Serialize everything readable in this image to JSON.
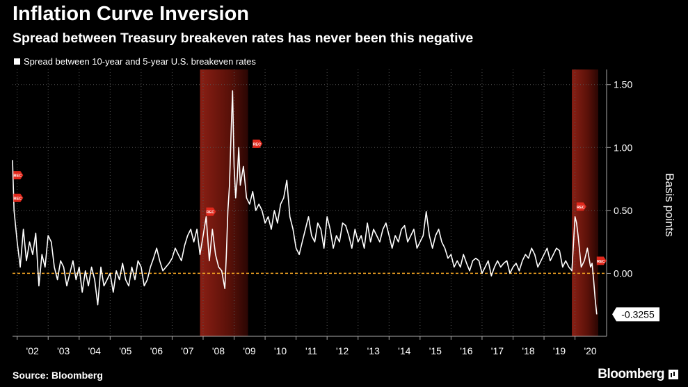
{
  "header": {
    "title": "Inflation Curve Inversion",
    "subtitle": "Spread between Treasury breakeven rates has never been this negative"
  },
  "footer": {
    "source": "Source: Bloomberg",
    "brand": "Bloomberg"
  },
  "chart_data": {
    "type": "line",
    "title": "Inflation Curve Inversion",
    "subtitle": "Spread between Treasury breakeven rates has never been this negative",
    "ylabel": "Basis points",
    "xlabel": "",
    "legend": {
      "entries": [
        "Spread between 10-year and 5-year U.S. breakeven rates"
      ],
      "placement": "top-left"
    },
    "ylim": [
      -0.5,
      1.62
    ],
    "xlim": [
      2001.85,
      2020.75
    ],
    "yticks": [
      1.5,
      1.0,
      0.5,
      0.0
    ],
    "ytick_labels": [
      "1.50",
      "1.00",
      "0.50",
      "0.00"
    ],
    "xticks": [
      2002,
      2003,
      2004,
      2005,
      2006,
      2007,
      2008,
      2009,
      2010,
      2011,
      2012,
      2013,
      2014,
      2015,
      2016,
      2017,
      2018,
      2019,
      2020
    ],
    "xtick_labels": [
      "'02",
      "'03",
      "'04",
      "'05",
      "'06",
      "'07",
      "'08",
      "'09",
      "'10",
      "'11",
      "'12",
      "'13",
      "'14",
      "'15",
      "'16",
      "'17",
      "'18",
      "'19",
      "'20"
    ],
    "grid": true,
    "reference_line": {
      "y": 0,
      "color": "#f5a623",
      "style": "dashed"
    },
    "recession_shading": [
      {
        "start": 2007.9,
        "end": 2009.45
      },
      {
        "start": 2019.9,
        "end": 2020.75
      }
    ],
    "last_value_label": "-0.3255",
    "colors": {
      "line": "#ffffff",
      "zero_line": "#f5a623",
      "recession": "#7a1a12",
      "marker": "#e0281c"
    },
    "markers": [
      {
        "x": 2001.88,
        "y": 0.78,
        "label": "REC"
      },
      {
        "x": 2001.88,
        "y": 0.6,
        "label": "REC"
      },
      {
        "x": 2008.1,
        "y": 0.49,
        "label": "REC"
      },
      {
        "x": 2009.6,
        "y": 1.03,
        "label": "REC"
      },
      {
        "x": 2020.05,
        "y": 0.53,
        "label": "REC"
      },
      {
        "x": 2020.7,
        "y": 0.1,
        "label": "REC"
      }
    ],
    "series": [
      {
        "name": "Spread between 10-year and 5-year U.S. breakeven rates",
        "x": [
          2001.85,
          2001.9,
          2002.0,
          2002.1,
          2002.2,
          2002.3,
          2002.4,
          2002.5,
          2002.6,
          2002.7,
          2002.8,
          2002.9,
          2003.0,
          2003.1,
          2003.2,
          2003.3,
          2003.4,
          2003.5,
          2003.6,
          2003.7,
          2003.8,
          2003.9,
          2004.0,
          2004.1,
          2004.2,
          2004.3,
          2004.4,
          2004.5,
          2004.6,
          2004.7,
          2004.8,
          2004.9,
          2005.0,
          2005.1,
          2005.2,
          2005.3,
          2005.4,
          2005.5,
          2005.6,
          2005.7,
          2005.8,
          2005.9,
          2006.0,
          2006.1,
          2006.2,
          2006.3,
          2006.4,
          2006.5,
          2006.6,
          2006.7,
          2006.8,
          2006.9,
          2007.0,
          2007.1,
          2007.2,
          2007.3,
          2007.4,
          2007.5,
          2007.6,
          2007.7,
          2007.8,
          2007.9,
          2008.0,
          2008.1,
          2008.2,
          2008.3,
          2008.4,
          2008.5,
          2008.6,
          2008.7,
          2008.75,
          2008.8,
          2008.85,
          2008.9,
          2008.95,
          2009.0,
          2009.05,
          2009.1,
          2009.15,
          2009.2,
          2009.3,
          2009.4,
          2009.5,
          2009.6,
          2009.7,
          2009.8,
          2009.9,
          2010.0,
          2010.1,
          2010.2,
          2010.3,
          2010.4,
          2010.5,
          2010.6,
          2010.7,
          2010.8,
          2010.9,
          2011.0,
          2011.1,
          2011.2,
          2011.3,
          2011.4,
          2011.5,
          2011.6,
          2011.7,
          2011.8,
          2011.9,
          2012.0,
          2012.1,
          2012.2,
          2012.3,
          2012.4,
          2012.5,
          2012.6,
          2012.7,
          2012.8,
          2012.9,
          2013.0,
          2013.1,
          2013.2,
          2013.3,
          2013.4,
          2013.5,
          2013.6,
          2013.7,
          2013.8,
          2013.9,
          2014.0,
          2014.1,
          2014.2,
          2014.3,
          2014.4,
          2014.5,
          2014.6,
          2014.7,
          2014.8,
          2014.9,
          2015.0,
          2015.1,
          2015.2,
          2015.3,
          2015.4,
          2015.5,
          2015.6,
          2015.7,
          2015.8,
          2015.9,
          2016.0,
          2016.1,
          2016.2,
          2016.3,
          2016.4,
          2016.5,
          2016.6,
          2016.7,
          2016.8,
          2016.9,
          2017.0,
          2017.1,
          2017.2,
          2017.3,
          2017.4,
          2017.5,
          2017.6,
          2017.7,
          2017.8,
          2017.9,
          2018.0,
          2018.1,
          2018.2,
          2018.3,
          2018.4,
          2018.5,
          2018.6,
          2018.7,
          2018.8,
          2018.9,
          2019.0,
          2019.1,
          2019.2,
          2019.3,
          2019.4,
          2019.5,
          2019.6,
          2019.7,
          2019.8,
          2019.9,
          2020.0,
          2020.05,
          2020.1,
          2020.2,
          2020.3,
          2020.35,
          2020.4,
          2020.5,
          2020.55,
          2020.6,
          2020.65,
          2020.7
        ],
        "y": [
          0.9,
          0.5,
          0.25,
          0.05,
          0.35,
          0.1,
          0.25,
          0.15,
          0.32,
          -0.1,
          0.15,
          0.05,
          0.3,
          0.25,
          0.05,
          -0.05,
          0.1,
          0.05,
          -0.1,
          0.0,
          0.1,
          -0.05,
          0.05,
          -0.15,
          0.02,
          -0.1,
          0.05,
          -0.05,
          -0.25,
          0.05,
          -0.1,
          -0.05,
          0.0,
          -0.15,
          0.02,
          -0.05,
          0.08,
          -0.05,
          -0.1,
          0.05,
          -0.05,
          0.1,
          0.05,
          -0.1,
          -0.05,
          0.05,
          0.12,
          0.2,
          0.1,
          0.02,
          0.05,
          0.08,
          0.12,
          0.2,
          0.15,
          0.1,
          0.22,
          0.3,
          0.35,
          0.25,
          0.35,
          0.15,
          0.3,
          0.45,
          0.1,
          0.35,
          0.15,
          0.05,
          0.02,
          -0.12,
          0.15,
          0.5,
          0.7,
          1.1,
          1.45,
          0.85,
          0.6,
          0.75,
          1.0,
          0.7,
          0.85,
          0.6,
          0.55,
          0.65,
          0.5,
          0.55,
          0.5,
          0.4,
          0.45,
          0.35,
          0.5,
          0.4,
          0.55,
          0.6,
          0.74,
          0.45,
          0.35,
          0.2,
          0.15,
          0.25,
          0.35,
          0.45,
          0.3,
          0.25,
          0.4,
          0.35,
          0.2,
          0.45,
          0.35,
          0.2,
          0.3,
          0.25,
          0.4,
          0.38,
          0.3,
          0.2,
          0.35,
          0.25,
          0.3,
          0.2,
          0.4,
          0.25,
          0.35,
          0.3,
          0.25,
          0.35,
          0.4,
          0.3,
          0.2,
          0.3,
          0.25,
          0.35,
          0.38,
          0.25,
          0.3,
          0.35,
          0.2,
          0.25,
          0.3,
          0.49,
          0.3,
          0.2,
          0.3,
          0.35,
          0.25,
          0.2,
          0.12,
          0.15,
          0.05,
          0.1,
          0.05,
          0.15,
          0.08,
          0.02,
          0.1,
          0.12,
          0.1,
          0.0,
          0.05,
          0.1,
          -0.02,
          0.05,
          0.1,
          0.05,
          0.08,
          0.1,
          0.0,
          0.05,
          0.08,
          0.02,
          0.1,
          0.15,
          0.12,
          0.2,
          0.15,
          0.05,
          0.1,
          0.15,
          0.2,
          0.1,
          0.15,
          0.2,
          0.18,
          0.05,
          0.1,
          0.05,
          0.02,
          0.45,
          0.4,
          0.3,
          0.05,
          0.1,
          0.15,
          0.2,
          0.05,
          0.08,
          -0.05,
          -0.2,
          -0.3255
        ]
      }
    ]
  }
}
